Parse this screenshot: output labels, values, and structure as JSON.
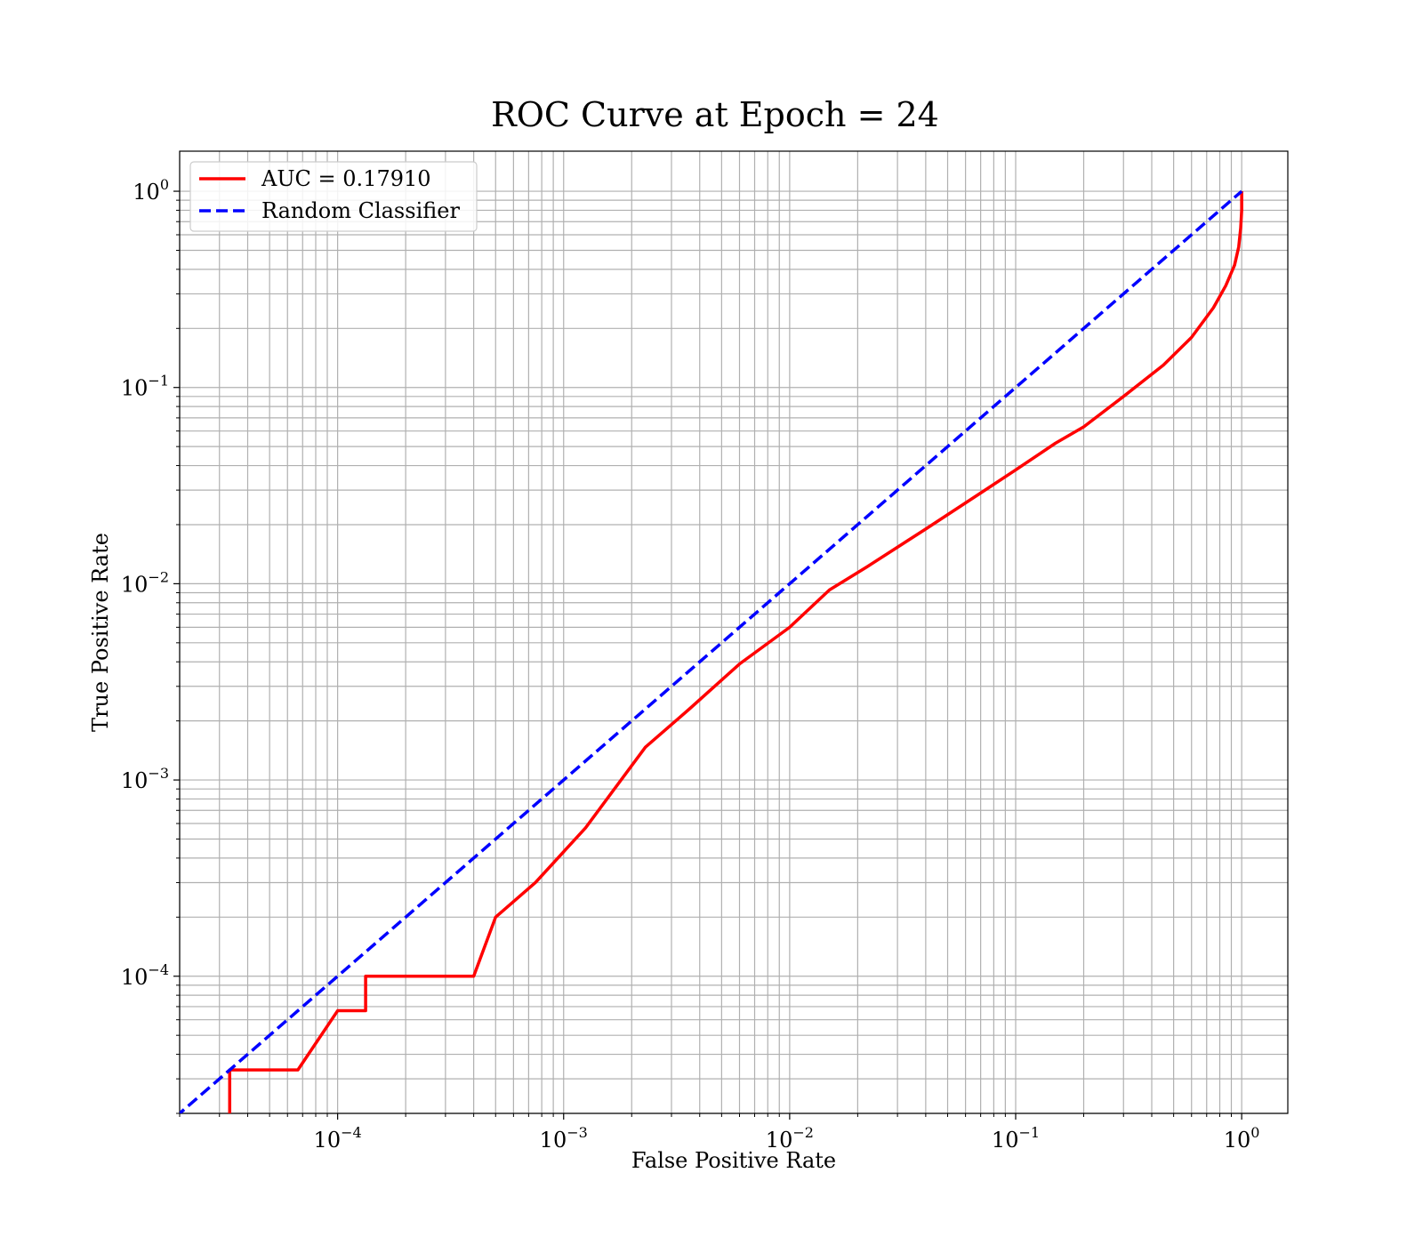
{
  "chart_data": {
    "type": "line",
    "title": "ROC Curve at Epoch = 24",
    "xlabel": "False Positive Rate",
    "ylabel": "True Positive Rate",
    "xscale": "log",
    "yscale": "log",
    "xlim": [
      2e-05,
      1.6
    ],
    "ylim": [
      2e-05,
      1.6
    ],
    "grid": true,
    "legend_location": "top-left",
    "x_ticks": [
      {
        "base": "10",
        "exp": "−4",
        "value": 0.0001
      },
      {
        "base": "10",
        "exp": "−3",
        "value": 0.001
      },
      {
        "base": "10",
        "exp": "−2",
        "value": 0.01
      },
      {
        "base": "10",
        "exp": "−1",
        "value": 0.1
      },
      {
        "base": "10",
        "exp": "0",
        "value": 1
      }
    ],
    "y_ticks": [
      {
        "base": "10",
        "exp": "−4",
        "value": 0.0001
      },
      {
        "base": "10",
        "exp": "−3",
        "value": 0.001
      },
      {
        "base": "10",
        "exp": "−2",
        "value": 0.01
      },
      {
        "base": "10",
        "exp": "−1",
        "value": 0.1
      },
      {
        "base": "10",
        "exp": "0",
        "value": 1
      }
    ],
    "series": [
      {
        "name": "AUC = 0.17910",
        "color": "#ff0000",
        "style": "solid",
        "points": [
          [
            3.33e-05,
            1e-05
          ],
          [
            3.33e-05,
            3.33e-05
          ],
          [
            6.67e-05,
            3.33e-05
          ],
          [
            0.0001,
            6.67e-05
          ],
          [
            0.000133,
            6.67e-05
          ],
          [
            0.000133,
            0.0001
          ],
          [
            0.0004,
            0.0001
          ],
          [
            0.0005,
            0.0002
          ],
          [
            0.00075,
            0.0003
          ],
          [
            0.00125,
            0.00057
          ],
          [
            0.0023,
            0.00147
          ],
          [
            0.0036,
            0.0023
          ],
          [
            0.006,
            0.0039
          ],
          [
            0.01,
            0.006
          ],
          [
            0.015,
            0.0093
          ],
          [
            0.022,
            0.0122
          ],
          [
            0.04,
            0.019
          ],
          [
            0.07,
            0.029
          ],
          [
            0.1,
            0.038
          ],
          [
            0.15,
            0.052
          ],
          [
            0.2,
            0.063
          ],
          [
            0.3,
            0.09
          ],
          [
            0.45,
            0.13
          ],
          [
            0.6,
            0.18
          ],
          [
            0.75,
            0.255
          ],
          [
            0.85,
            0.33
          ],
          [
            0.93,
            0.42
          ],
          [
            0.97,
            0.52
          ],
          [
            0.99,
            0.65
          ],
          [
            1.0,
            0.8
          ],
          [
            1.0,
            1.0
          ]
        ]
      },
      {
        "name": "Random Classifier",
        "color": "#0000ff",
        "style": "dashed",
        "points": [
          [
            1e-05,
            1e-05
          ],
          [
            1.0,
            1.0
          ]
        ]
      }
    ]
  }
}
